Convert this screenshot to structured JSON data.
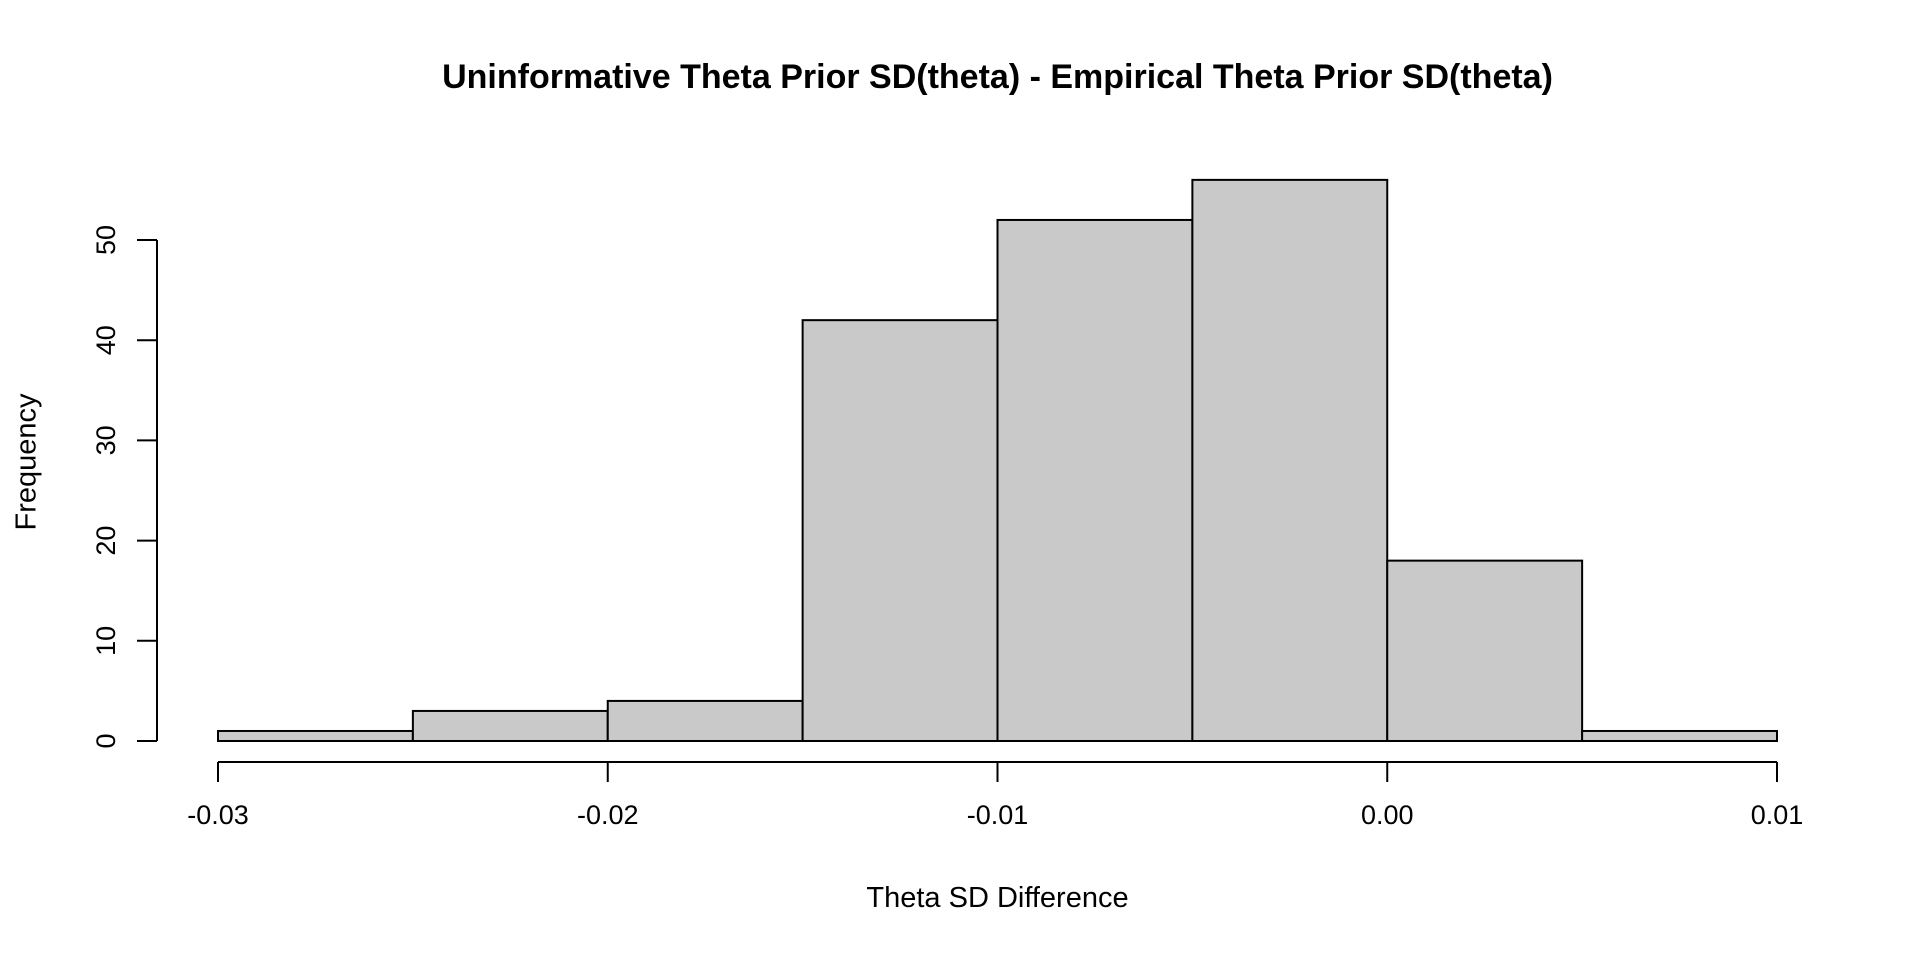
{
  "chart_data": {
    "type": "bar",
    "subtype": "histogram",
    "title": "Uninformative Theta Prior SD(theta) - Empirical Theta Prior SD(theta)",
    "xlabel": "Theta SD Difference",
    "ylabel": "Frequency",
    "breaks": [
      -0.03,
      -0.025,
      -0.02,
      -0.015,
      -0.01,
      -0.005,
      0.0,
      0.005,
      0.01
    ],
    "counts": [
      1,
      3,
      4,
      42,
      52,
      56,
      18,
      1
    ],
    "x_ticks": [
      {
        "value": -0.03,
        "label": "-0.03"
      },
      {
        "value": -0.02,
        "label": "-0.02"
      },
      {
        "value": -0.01,
        "label": "-0.01"
      },
      {
        "value": 0.0,
        "label": "0.00"
      },
      {
        "value": 0.01,
        "label": "0.01"
      }
    ],
    "y_ticks": [
      {
        "value": 0,
        "label": "0"
      },
      {
        "value": 10,
        "label": "10"
      },
      {
        "value": 20,
        "label": "20"
      },
      {
        "value": 30,
        "label": "30"
      },
      {
        "value": 40,
        "label": "40"
      },
      {
        "value": 50,
        "label": "50"
      }
    ],
    "xlim": [
      -0.03,
      0.01
    ],
    "ylim": [
      0,
      50
    ],
    "grid": false,
    "legend": null,
    "colors": {
      "bar_fill": "#C9C9C9",
      "bar_stroke": "#000000",
      "axis": "#000000",
      "text": "#000000",
      "background": "#FFFFFF"
    }
  }
}
